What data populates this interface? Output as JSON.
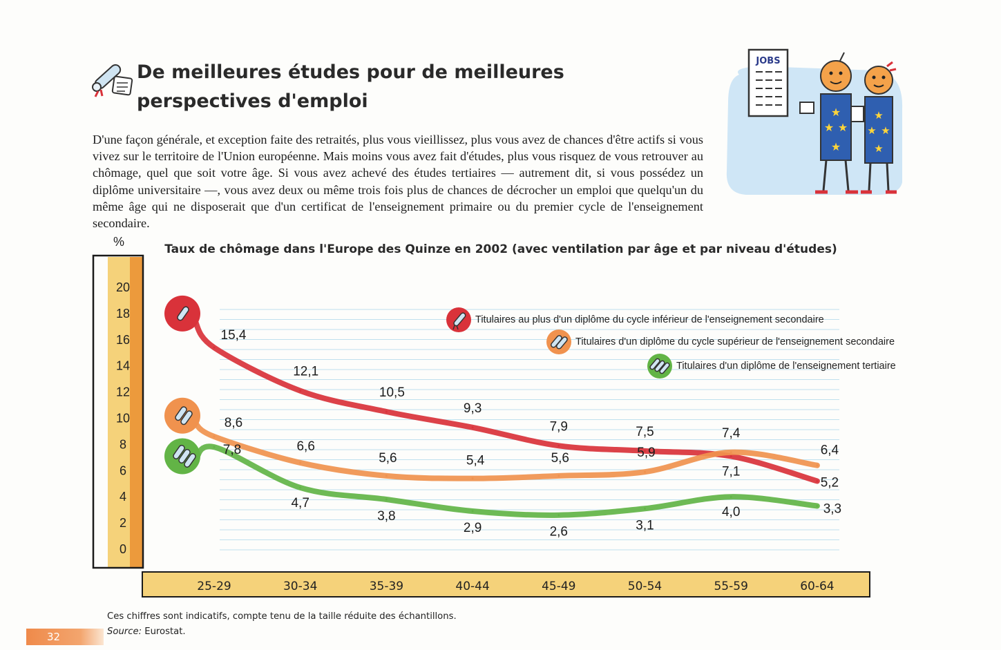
{
  "page": {
    "title": "De meilleures études pour de meilleures perspectives d'emploi",
    "intro": "D'une façon générale, et exception faite des retraités, plus vous vieillissez, plus vous avez de chances d'être actifs si vous vivez sur le territoire de l'Union européenne. Mais moins vous avez fait d'études, plus vous risquez de vous retrouver au chômage, quel que soit votre âge. Si vous avez achevé des études tertiaires — autrement dit, si vous possédez un diplôme universitaire —, vous avez deux ou même trois fois plus de chances de décrocher un emploi que quelqu'un du même âge qui ne disposerait que d'un certificat de l'enseignement primaire ou du premier cycle de l'enseignement secondaire.",
    "illustration_sign": "JOBS",
    "footnote": "Ces chiffres sont indicatifs, compte tenu de la taille réduite des échantillons.",
    "source_label": "Source:",
    "source_value": "Eurostat.",
    "page_number": "32"
  },
  "colors": {
    "lower_secondary": "#d9323a",
    "upper_secondary": "#f0924e",
    "tertiary": "#62b446",
    "axis_band": "#f5d27a",
    "axis_band_edge": "#ec9a3c",
    "grid": "#bfe0ee"
  },
  "chart_data": {
    "type": "line",
    "title": "Taux de chômage dans l'Europe des Quinze en 2002 (avec ventilation par âge et par niveau d'études)",
    "ylabel": "%",
    "xlabel": "",
    "ylim": [
      0,
      20
    ],
    "yticks": [
      "20",
      "18",
      "16",
      "14",
      "12",
      "10",
      "8",
      "6",
      "4",
      "2",
      "0"
    ],
    "categories": [
      "25-29",
      "30-34",
      "35-39",
      "40-44",
      "45-49",
      "50-54",
      "55-59",
      "60-64"
    ],
    "grid": true,
    "legend_position": "top-right",
    "series": [
      {
        "name": "Titulaires au plus d'un diplôme du cycle inférieur de l'enseignement secondaire",
        "values": [
          15.4,
          12.1,
          10.5,
          9.3,
          7.9,
          7.5,
          7.1,
          5.2
        ],
        "labels": [
          "15,4",
          "12,1",
          "10,5",
          "9,3",
          "7,9",
          "7,5",
          "7,1",
          "5,2"
        ],
        "color": "#d9323a",
        "icon": "rolled-diploma-icon"
      },
      {
        "name": "Titulaires d'un diplôme du cycle supérieur de l'enseignement secondaire",
        "values": [
          8.6,
          6.6,
          5.6,
          5.4,
          5.6,
          5.9,
          7.4,
          6.4
        ],
        "labels": [
          "8,6",
          "6,6",
          "5,6",
          "5,4",
          "5,6",
          "5,9",
          "7,4",
          "6,4"
        ],
        "color": "#f0924e",
        "icon": "two-diplomas-icon"
      },
      {
        "name": "Titulaires d'un diplôme de l'enseignement tertiaire",
        "values": [
          7.8,
          4.7,
          3.8,
          2.9,
          2.6,
          3.1,
          4.0,
          3.3
        ],
        "labels": [
          "7,8",
          "4,7",
          "3,8",
          "2,9",
          "2,6",
          "3,1",
          "4,0",
          "3,3"
        ],
        "color": "#62b446",
        "icon": "three-diplomas-icon"
      }
    ]
  }
}
